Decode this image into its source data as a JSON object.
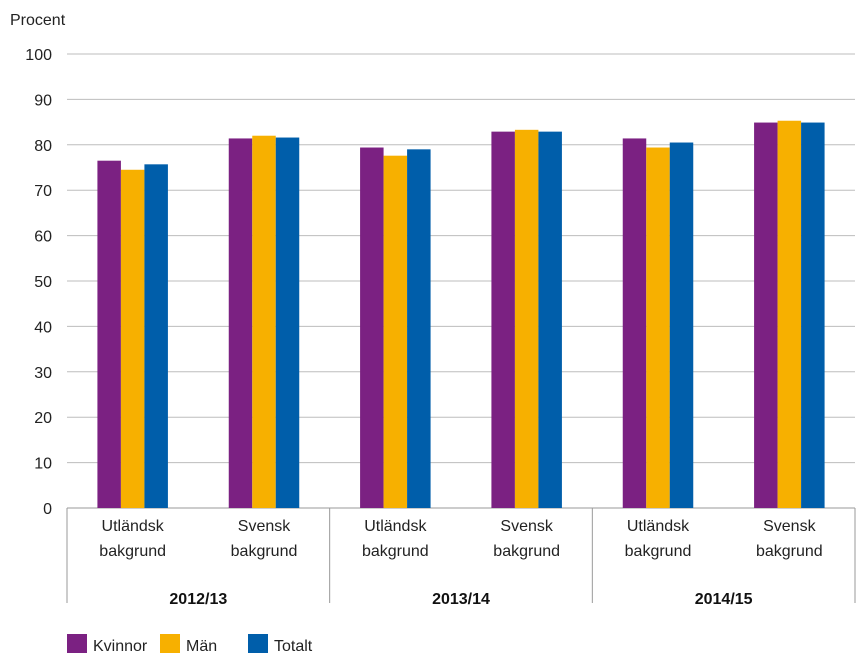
{
  "chart_data": {
    "type": "bar",
    "ylabel": "Procent",
    "ylim": [
      0,
      100
    ],
    "yticks": [
      0,
      10,
      20,
      30,
      40,
      50,
      60,
      70,
      80,
      90,
      100
    ],
    "grid": true,
    "legend_position": "bottom-left",
    "groups": [
      {
        "label": "2012/13",
        "categories": [
          {
            "line1": "Utländsk",
            "line2": "bakgrund",
            "values": [
              76.5,
              74.5,
              75.7
            ]
          },
          {
            "line1": "Svensk",
            "line2": "bakgrund",
            "values": [
              81.4,
              82.0,
              81.6
            ]
          }
        ]
      },
      {
        "label": "2013/14",
        "categories": [
          {
            "line1": "Utländsk",
            "line2": "bakgrund",
            "values": [
              79.4,
              77.6,
              79.0
            ]
          },
          {
            "line1": "Svensk",
            "line2": "bakgrund",
            "values": [
              82.9,
              83.3,
              82.9
            ]
          }
        ]
      },
      {
        "label": "2014/15",
        "categories": [
          {
            "line1": "Utländsk",
            "line2": "bakgrund",
            "values": [
              81.4,
              79.4,
              80.5
            ]
          },
          {
            "line1": "Svensk",
            "line2": "bakgrund",
            "values": [
              84.9,
              85.3,
              84.9
            ]
          }
        ]
      }
    ],
    "series": [
      {
        "name": "Kvinnor",
        "color": "#7b2182"
      },
      {
        "name": "Män",
        "color": "#f7b000"
      },
      {
        "name": "Totalt",
        "color": "#005eaa"
      }
    ]
  }
}
